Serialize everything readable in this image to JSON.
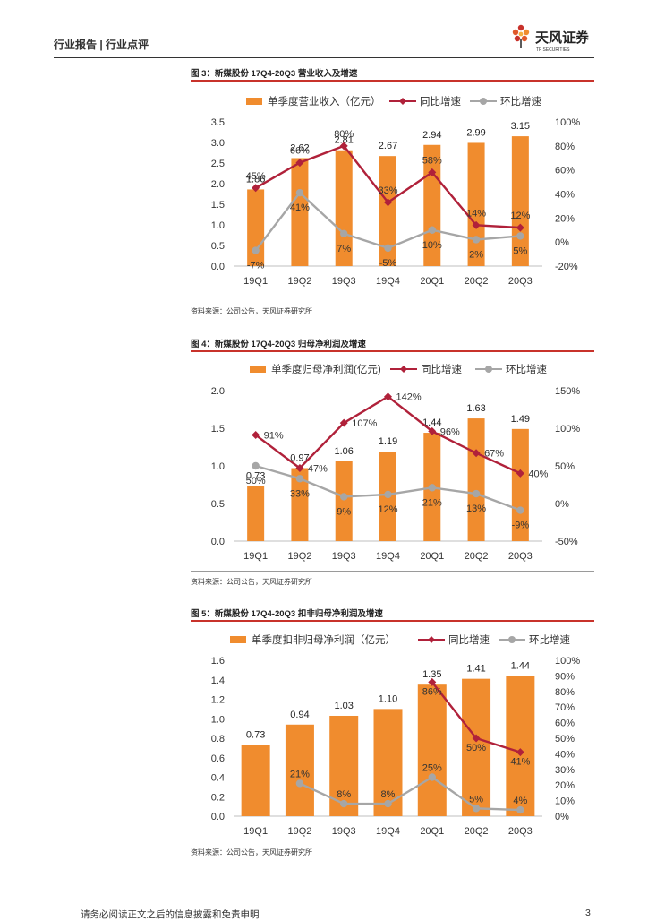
{
  "header": {
    "left_text": "行业报告 | 行业点评",
    "brand_name": "天风证券",
    "brand_sub": "TF SECURITIES"
  },
  "colors": {
    "bar": "#f08c2e",
    "yoy": "#b0213a",
    "qoq": "#a6a6a6",
    "red": "#c8322b"
  },
  "chart_data": [
    {
      "type": "bar",
      "title": "图 3：新媒股份 17Q4-20Q3 营业收入及增速",
      "source": "资料来源：公司公告，天风证券研究所",
      "categories": [
        "19Q1",
        "19Q2",
        "19Q3",
        "19Q4",
        "20Q1",
        "20Q2",
        "20Q3"
      ],
      "series": [
        {
          "name": "单季度营业收入（亿元）",
          "kind": "bar",
          "axis": "left",
          "values": [
            1.86,
            2.62,
            2.81,
            2.67,
            2.94,
            2.99,
            3.15
          ],
          "labels": [
            "1.86",
            "2.62",
            "2.81",
            "2.67",
            "2.94",
            "2.99",
            "3.15"
          ]
        },
        {
          "name": "同比增速",
          "kind": "line",
          "axis": "right",
          "values": [
            45,
            66,
            80,
            33,
            58,
            14,
            12
          ],
          "labels": [
            "45%",
            "66%",
            "80%",
            "33%",
            "58%",
            "14%",
            "12%"
          ]
        },
        {
          "name": "环比增速",
          "kind": "line",
          "axis": "right",
          "values": [
            -7,
            41,
            7,
            -5,
            10,
            2,
            5
          ],
          "labels": [
            "-7%",
            "41%",
            "7%",
            "-5%",
            "10%",
            "2%",
            "5%"
          ]
        }
      ],
      "y_left": {
        "min": 0,
        "max": 3.5,
        "ticks": [
          "0.0",
          "0.5",
          "1.0",
          "1.5",
          "2.0",
          "2.5",
          "3.0",
          "3.5"
        ]
      },
      "y_right": {
        "min": -20,
        "max": 100,
        "ticks": [
          "-20%",
          "0%",
          "20%",
          "40%",
          "60%",
          "80%",
          "100%"
        ]
      }
    },
    {
      "type": "bar",
      "title": "图 4：新媒股份 17Q4-20Q3 归母净利润及增速",
      "source": "资料来源：公司公告，天风证券研究所",
      "categories": [
        "19Q1",
        "19Q2",
        "19Q3",
        "19Q4",
        "20Q1",
        "20Q2",
        "20Q3"
      ],
      "series": [
        {
          "name": "单季度归母净利润(亿元)",
          "kind": "bar",
          "axis": "left",
          "values": [
            0.73,
            0.97,
            1.06,
            1.19,
            1.44,
            1.63,
            1.49
          ],
          "labels": [
            "0.73",
            "0.97",
            "1.06",
            "1.19",
            "1.44",
            "1.63",
            "1.49"
          ]
        },
        {
          "name": "同比增速",
          "kind": "line",
          "axis": "right",
          "values": [
            91,
            47,
            107,
            142,
            96,
            67,
            40
          ],
          "labels": [
            "91%",
            "47%",
            "107%",
            "142%",
            "96%",
            "67%",
            "40%"
          ]
        },
        {
          "name": "环比增速",
          "kind": "line",
          "axis": "right",
          "values": [
            50,
            33,
            9,
            12,
            21,
            13,
            -9
          ],
          "labels": [
            "50%",
            "33%",
            "9%",
            "12%",
            "21%",
            "13%",
            "-9%"
          ]
        }
      ],
      "y_left": {
        "min": 0,
        "max": 2.0,
        "ticks": [
          "0.0",
          "0.5",
          "1.0",
          "1.5",
          "2.0"
        ]
      },
      "y_right": {
        "min": -50,
        "max": 150,
        "ticks": [
          "-50%",
          "0%",
          "50%",
          "100%",
          "150%"
        ]
      }
    },
    {
      "type": "bar",
      "title": "图 5：新媒股份 17Q4-20Q3 扣非归母净利润及增速",
      "source": "资料来源：公司公告，天风证券研究所",
      "categories": [
        "19Q1",
        "19Q2",
        "19Q3",
        "19Q4",
        "20Q1",
        "20Q2",
        "20Q3"
      ],
      "series": [
        {
          "name": "单季度扣非归母净利润（亿元）",
          "kind": "bar",
          "axis": "left",
          "values": [
            0.73,
            0.94,
            1.03,
            1.1,
            1.35,
            1.41,
            1.44
          ],
          "labels": [
            "0.73",
            "0.94",
            "1.03",
            "1.10",
            "1.35",
            "1.41",
            "1.44"
          ]
        },
        {
          "name": "同比增速",
          "kind": "line",
          "axis": "right",
          "values": [
            null,
            null,
            null,
            null,
            86,
            50,
            41
          ],
          "labels": [
            "",
            "",
            "",
            "",
            "86%",
            "50%",
            "41%"
          ]
        },
        {
          "name": "环比增速",
          "kind": "line",
          "axis": "right",
          "values": [
            null,
            21,
            8,
            8,
            25,
            5,
            4
          ],
          "labels": [
            "",
            "21%",
            "8%",
            "8%",
            "25%",
            "5%",
            "4%"
          ]
        }
      ],
      "y_left": {
        "min": 0,
        "max": 1.6,
        "ticks": [
          "0.0",
          "0.2",
          "0.4",
          "0.6",
          "0.8",
          "1.0",
          "1.2",
          "1.4",
          "1.6"
        ]
      },
      "y_right": {
        "min": 0,
        "max": 100,
        "ticks": [
          "0%",
          "10%",
          "20%",
          "30%",
          "40%",
          "50%",
          "60%",
          "70%",
          "80%",
          "90%",
          "100%"
        ]
      }
    }
  ],
  "footer": {
    "disclaimer": "请务必阅读正文之后的信息披露和免责申明",
    "page": "3"
  }
}
